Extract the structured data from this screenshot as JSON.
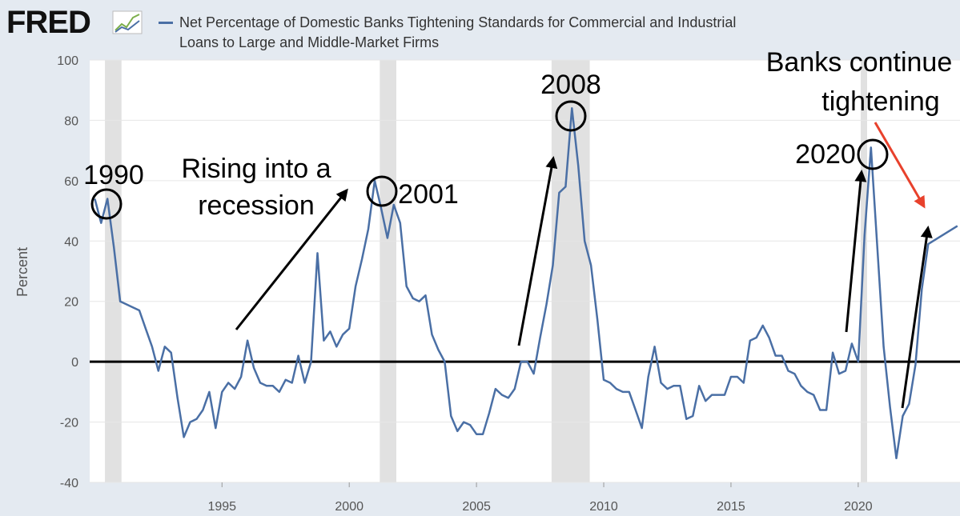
{
  "brand": "FRED",
  "chart_data": {
    "type": "line",
    "title": "Net Percentage of Domestic Banks Tightening Standards for Commercial and Industrial Loans to Large and Middle-Market Firms",
    "y_label": "Percent",
    "xlim": [
      1989.8,
      2024.0
    ],
    "xticks": [
      1995,
      2000,
      2005,
      2010,
      2015,
      2020
    ],
    "ylim": [
      -40,
      100
    ],
    "yticks": [
      -40,
      -20,
      0,
      20,
      40,
      60,
      80,
      100
    ],
    "grid": true,
    "reference_line": 0,
    "recessions": [
      [
        1990.4,
        1991.05
      ],
      [
        2001.2,
        2001.85
      ],
      [
        2007.95,
        2009.45
      ],
      [
        2020.1,
        2020.35
      ]
    ],
    "x": [
      1990.0,
      1990.25,
      1990.5,
      1990.75,
      1991.0,
      1991.25,
      1991.5,
      1991.75,
      1992.0,
      1992.25,
      1992.5,
      1992.75,
      1993.0,
      1993.25,
      1993.5,
      1993.75,
      1994.0,
      1994.25,
      1994.5,
      1994.75,
      1995.0,
      1995.25,
      1995.5,
      1995.75,
      1996.0,
      1996.25,
      1996.5,
      1996.75,
      1997.0,
      1997.25,
      1997.5,
      1997.75,
      1998.0,
      1998.25,
      1998.5,
      1998.75,
      1999.0,
      1999.25,
      1999.5,
      1999.75,
      2000.0,
      2000.25,
      2000.5,
      2000.75,
      2001.0,
      2001.25,
      2001.5,
      2001.75,
      2002.0,
      2002.25,
      2002.5,
      2002.75,
      2003.0,
      2003.25,
      2003.5,
      2003.75,
      2004.0,
      2004.25,
      2004.5,
      2004.75,
      2005.0,
      2005.25,
      2005.5,
      2005.75,
      2006.0,
      2006.25,
      2006.5,
      2006.75,
      2007.0,
      2007.25,
      2007.5,
      2007.75,
      2008.0,
      2008.25,
      2008.5,
      2008.75,
      2009.0,
      2009.25,
      2009.5,
      2009.75,
      2010.0,
      2010.25,
      2010.5,
      2010.75,
      2011.0,
      2011.25,
      2011.5,
      2011.75,
      2012.0,
      2012.25,
      2012.5,
      2012.75,
      2013.0,
      2013.25,
      2013.5,
      2013.75,
      2014.0,
      2014.25,
      2014.5,
      2014.75,
      2015.0,
      2015.25,
      2015.5,
      2015.75,
      2016.0,
      2016.25,
      2016.5,
      2016.75,
      2017.0,
      2017.25,
      2017.5,
      2017.75,
      2018.0,
      2018.25,
      2018.5,
      2018.75,
      2019.0,
      2019.25,
      2019.5,
      2019.75,
      2020.0,
      2020.25,
      2020.5,
      2020.75,
      2021.0,
      2021.25,
      2021.5,
      2021.75,
      2022.0,
      2022.25,
      2022.5,
      2022.75,
      2023.9
    ],
    "series": [
      {
        "name": "Net Percentage of Domestic Banks Tightening Standards for Commercial and Industrial Loans to Large and Middle-Market Firms",
        "color": "#4a6fa5",
        "values": [
          54,
          46,
          54,
          38,
          20,
          19,
          18,
          17,
          11,
          5,
          -3,
          5,
          3,
          -12,
          -25,
          -20,
          -19,
          -16,
          -10,
          -22,
          -10,
          -7,
          -9,
          -5,
          7,
          -2,
          -7,
          -8,
          -8,
          -10,
          -6,
          -7,
          2,
          -7,
          0,
          36,
          7,
          10,
          5,
          9,
          11,
          25,
          34,
          44,
          60,
          51,
          41,
          52,
          46,
          25,
          21,
          20,
          22,
          9,
          4,
          0,
          -18,
          -23,
          -20,
          -21,
          -24,
          -24,
          -17,
          -9,
          -11,
          -12,
          -9,
          0,
          0,
          -4,
          8,
          19,
          32,
          56,
          58,
          84,
          65,
          40,
          32,
          14,
          -6,
          -7,
          -9,
          -10,
          -10,
          -16,
          -22,
          -5,
          5,
          -7,
          -9,
          -8,
          -8,
          -19,
          -18,
          -8,
          -13,
          -11,
          -11,
          -11,
          -5,
          -5,
          -7,
          7,
          8,
          12,
          8,
          2,
          2,
          -3,
          -4,
          -8,
          -10,
          -11,
          -16,
          -16,
          3,
          -4,
          -3,
          6,
          0,
          42,
          71,
          38,
          5,
          -15,
          -32,
          -18,
          -14,
          -1,
          24,
          39,
          45
        ]
      }
    ],
    "annotations": [
      {
        "lines": [
          "1990"
        ]
      },
      {
        "lines": [
          "Rising into a",
          "recession"
        ]
      },
      {
        "lines": [
          "2001"
        ]
      },
      {
        "lines": [
          "2008"
        ]
      },
      {
        "lines": [
          "2020"
        ]
      },
      {
        "lines": [
          "Banks continue",
          "tightening"
        ]
      }
    ]
  }
}
